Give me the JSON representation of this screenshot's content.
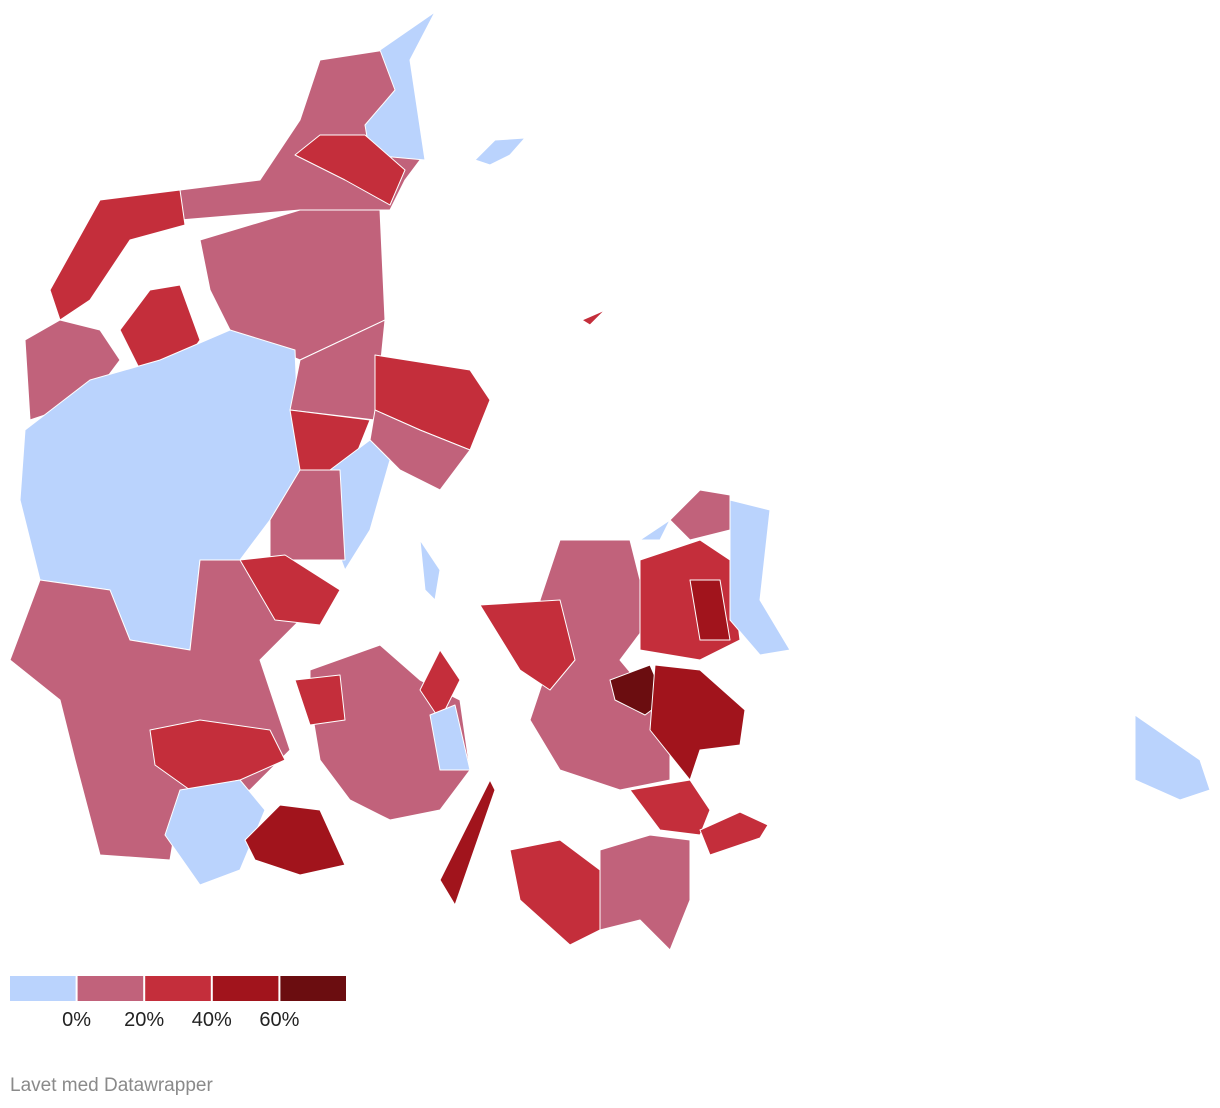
{
  "legend": {
    "colors": [
      "#bad3fd",
      "#c1627b",
      "#c42e3b",
      "#a1141c",
      "#6b0d10"
    ],
    "ticks": [
      {
        "value": 0,
        "label": "0%"
      },
      {
        "value": 20,
        "label": "20%"
      },
      {
        "value": 40,
        "label": "40%"
      },
      {
        "value": 60,
        "label": "60%"
      }
    ]
  },
  "footer": "Lavet med Datawrapper"
}
